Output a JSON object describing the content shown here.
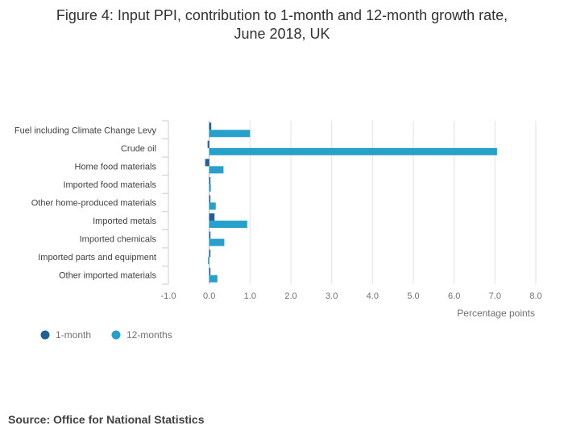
{
  "title_line1": "Figure 4: Input PPI, contribution to 1-month and 12-month growth rate,",
  "title_line2": "June 2018, UK",
  "source": "Source: Office for National Statistics",
  "chart_data": {
    "type": "bar",
    "orientation": "horizontal",
    "title": "Figure 4: Input PPI, contribution to 1-month and 12-month growth rate, June 2018, UK",
    "xlabel": "Percentage points",
    "ylabel": "",
    "xlim": [
      -1.0,
      8.0
    ],
    "x_ticks": [
      "-1.0",
      "0.0",
      "1.0",
      "2.0",
      "3.0",
      "4.0",
      "5.0",
      "6.0",
      "7.0",
      "8.0"
    ],
    "grid": true,
    "legend_position": "bottom-left",
    "categories": [
      "Fuel including Climate Change Levy",
      "Crude oil",
      "Home food materials",
      "Imported food materials",
      "Other home-produced materials",
      "Imported metals",
      "Imported chemicals",
      "Imported parts and equipment",
      "Other imported materials"
    ],
    "series": [
      {
        "name": "1-month",
        "color": "#206095",
        "values": [
          0.05,
          -0.04,
          -0.1,
          0.0,
          0.0,
          0.13,
          0.03,
          0.03,
          0.01
        ]
      },
      {
        "name": "12-months",
        "color": "#27a0cc",
        "values": [
          1.0,
          7.05,
          0.35,
          0.04,
          0.16,
          0.93,
          0.37,
          -0.02,
          0.2
        ]
      }
    ]
  }
}
